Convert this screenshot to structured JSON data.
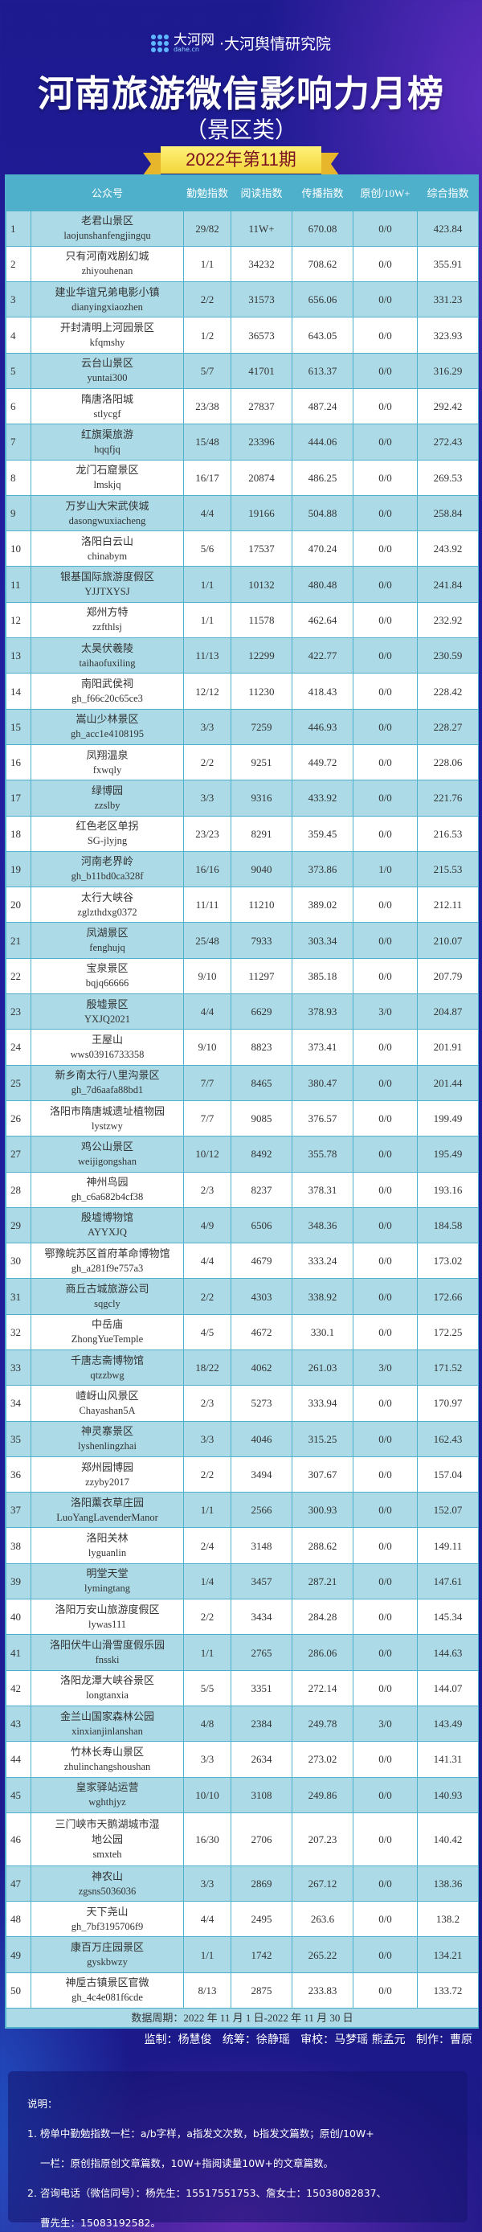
{
  "header": {
    "logo_brand": "大河网",
    "logo_domain": "dahe.cn",
    "logo_org": "·大河舆情研究院",
    "title": "河南旅游微信影响力月榜",
    "subtitle": "（景区类）",
    "issue": "2022年第11期"
  },
  "colors": {
    "table_header": "#4fb0cc",
    "row_odd": "#acdbe7",
    "row_even": "#ffffff",
    "badge": "#f3d53a",
    "background": "#1f1c98"
  },
  "table": {
    "columns": [
      "",
      "公众号",
      "勤勉指数",
      "阅读指数",
      "传播指数",
      "原创/10W+",
      "综合指数"
    ],
    "rows": [
      {
        "rank": "1",
        "name": "老君山景区",
        "id": "laojunshanfengjingqu",
        "diligence": "29/82",
        "read": "11W+",
        "spread": "670.08",
        "orig": "0/0",
        "total": "423.84"
      },
      {
        "rank": "2",
        "name": "只有河南戏剧幻城",
        "id": "zhiyouhenan",
        "diligence": "1/1",
        "read": "34232",
        "spread": "708.62",
        "orig": "0/0",
        "total": "355.91"
      },
      {
        "rank": "3",
        "name": "建业华谊兄弟电影小镇",
        "id": "dianyingxiaozhen",
        "diligence": "2/2",
        "read": "31573",
        "spread": "656.06",
        "orig": "0/0",
        "total": "331.23"
      },
      {
        "rank": "4",
        "name": "开封清明上河园景区",
        "id": "kfqmshy",
        "diligence": "1/2",
        "read": "36573",
        "spread": "643.05",
        "orig": "0/0",
        "total": "323.93"
      },
      {
        "rank": "5",
        "name": "云台山景区",
        "id": "yuntai300",
        "diligence": "5/7",
        "read": "41701",
        "spread": "613.37",
        "orig": "0/0",
        "total": "316.29"
      },
      {
        "rank": "6",
        "name": "隋唐洛阳城",
        "id": "stlycgf",
        "diligence": "23/38",
        "read": "27837",
        "spread": "487.24",
        "orig": "0/0",
        "total": "292.42"
      },
      {
        "rank": "7",
        "name": "红旗渠旅游",
        "id": "hqqfjq",
        "diligence": "15/48",
        "read": "23396",
        "spread": "444.06",
        "orig": "0/0",
        "total": "272.43"
      },
      {
        "rank": "8",
        "name": "龙门石窟景区",
        "id": "lmskjq",
        "diligence": "16/17",
        "read": "20874",
        "spread": "486.25",
        "orig": "0/0",
        "total": "269.53"
      },
      {
        "rank": "9",
        "name": "万岁山大宋武侠城",
        "id": "dasongwuxiacheng",
        "diligence": "4/4",
        "read": "19166",
        "spread": "504.88",
        "orig": "0/0",
        "total": "258.84"
      },
      {
        "rank": "10",
        "name": "洛阳白云山",
        "id": "chinabym",
        "diligence": "5/6",
        "read": "17537",
        "spread": "470.24",
        "orig": "0/0",
        "total": "243.92"
      },
      {
        "rank": "11",
        "name": "银基国际旅游度假区",
        "id": "YJJTXYSJ",
        "diligence": "1/1",
        "read": "10132",
        "spread": "480.48",
        "orig": "0/0",
        "total": "241.84"
      },
      {
        "rank": "12",
        "name": "郑州方特",
        "id": "zzfthlsj",
        "diligence": "1/1",
        "read": "11578",
        "spread": "462.64",
        "orig": "0/0",
        "total": "232.92"
      },
      {
        "rank": "13",
        "name": "太昊伏羲陵",
        "id": "taihaofuxiling",
        "diligence": "11/13",
        "read": "12299",
        "spread": "422.77",
        "orig": "0/0",
        "total": "230.59"
      },
      {
        "rank": "14",
        "name": "南阳武侯祠",
        "id": "gh_f66c20c65ce3",
        "diligence": "12/12",
        "read": "11230",
        "spread": "418.43",
        "orig": "0/0",
        "total": "228.42"
      },
      {
        "rank": "15",
        "name": "嵩山少林景区",
        "id": "gh_acc1e4108195",
        "diligence": "3/3",
        "read": "7259",
        "spread": "446.93",
        "orig": "0/0",
        "total": "228.27"
      },
      {
        "rank": "16",
        "name": "凤翔温泉",
        "id": "fxwqly",
        "diligence": "2/2",
        "read": "9251",
        "spread": "449.72",
        "orig": "0/0",
        "total": "228.06"
      },
      {
        "rank": "17",
        "name": "绿博园",
        "id": "zzslby",
        "diligence": "3/3",
        "read": "9316",
        "spread": "433.92",
        "orig": "0/0",
        "total": "221.76"
      },
      {
        "rank": "18",
        "name": "红色老区单拐",
        "id": "SG-jlyjng",
        "diligence": "23/23",
        "read": "8291",
        "spread": "359.45",
        "orig": "0/0",
        "total": "216.53"
      },
      {
        "rank": "19",
        "name": "河南老界岭",
        "id": "gh_b11bd0ca328f",
        "diligence": "16/16",
        "read": "9040",
        "spread": "373.86",
        "orig": "1/0",
        "total": "215.53"
      },
      {
        "rank": "20",
        "name": "太行大峡谷",
        "id": "zglzthdxg0372",
        "diligence": "11/11",
        "read": "11210",
        "spread": "389.02",
        "orig": "0/0",
        "total": "212.11"
      },
      {
        "rank": "21",
        "name": "凤湖景区",
        "id": "fenghujq",
        "diligence": "25/48",
        "read": "7933",
        "spread": "303.34",
        "orig": "0/0",
        "total": "210.07"
      },
      {
        "rank": "22",
        "name": "宝泉景区",
        "id": "bqjq66666",
        "diligence": "9/10",
        "read": "11297",
        "spread": "385.18",
        "orig": "0/0",
        "total": "207.79"
      },
      {
        "rank": "23",
        "name": "殷墟景区",
        "id": "YXJQ2021",
        "diligence": "4/4",
        "read": "6629",
        "spread": "378.93",
        "orig": "3/0",
        "total": "204.87"
      },
      {
        "rank": "24",
        "name": "王屋山",
        "id": "wws03916733358",
        "diligence": "9/10",
        "read": "8823",
        "spread": "373.41",
        "orig": "0/0",
        "total": "201.91"
      },
      {
        "rank": "25",
        "name": "新乡南太行八里沟景区",
        "id": "gh_7d6aafa88bd1",
        "diligence": "7/7",
        "read": "8465",
        "spread": "380.47",
        "orig": "0/0",
        "total": "201.44"
      },
      {
        "rank": "26",
        "name": "洛阳市隋唐城遗址植物园",
        "id": "lystzwy",
        "diligence": "7/7",
        "read": "9085",
        "spread": "376.57",
        "orig": "0/0",
        "total": "199.49"
      },
      {
        "rank": "27",
        "name": "鸡公山景区",
        "id": "weijigongshan",
        "diligence": "10/12",
        "read": "8492",
        "spread": "355.78",
        "orig": "0/0",
        "total": "195.49"
      },
      {
        "rank": "28",
        "name": "神州鸟园",
        "id": "gh_c6a682b4cf38",
        "diligence": "2/3",
        "read": "8237",
        "spread": "378.31",
        "orig": "0/0",
        "total": "193.16"
      },
      {
        "rank": "29",
        "name": "殷墟博物馆",
        "id": "AYYXJQ",
        "diligence": "4/9",
        "read": "6506",
        "spread": "348.36",
        "orig": "0/0",
        "total": "184.58"
      },
      {
        "rank": "30",
        "name": "鄂豫皖苏区首府革命博物馆",
        "id": "gh_a281f9e757a3",
        "diligence": "4/4",
        "read": "4679",
        "spread": "333.24",
        "orig": "0/0",
        "total": "173.02"
      },
      {
        "rank": "31",
        "name": "商丘古城旅游公司",
        "id": "sqgcly",
        "diligence": "2/2",
        "read": "4303",
        "spread": "338.92",
        "orig": "0/0",
        "total": "172.66"
      },
      {
        "rank": "32",
        "name": "中岳庙",
        "id": "ZhongYueTemple",
        "diligence": "4/5",
        "read": "4672",
        "spread": "330.1",
        "orig": "0/0",
        "total": "172.25"
      },
      {
        "rank": "33",
        "name": "千唐志斋博物馆",
        "id": "qtzzbwg",
        "diligence": "18/22",
        "read": "4062",
        "spread": "261.03",
        "orig": "3/0",
        "total": "171.52"
      },
      {
        "rank": "34",
        "name": "嵖岈山风景区",
        "id": "Chayashan5A",
        "diligence": "2/3",
        "read": "5273",
        "spread": "333.94",
        "orig": "0/0",
        "total": "170.97"
      },
      {
        "rank": "35",
        "name": "神灵寨景区",
        "id": "lyshenlingzhai",
        "diligence": "3/3",
        "read": "4046",
        "spread": "315.25",
        "orig": "0/0",
        "total": "162.43"
      },
      {
        "rank": "36",
        "name": "郑州园博园",
        "id": "zzyby2017",
        "diligence": "2/2",
        "read": "3494",
        "spread": "307.67",
        "orig": "0/0",
        "total": "157.04"
      },
      {
        "rank": "37",
        "name": "洛阳薰衣草庄园",
        "id": "LuoYangLavenderManor",
        "diligence": "1/1",
        "read": "2566",
        "spread": "300.93",
        "orig": "0/0",
        "total": "152.07"
      },
      {
        "rank": "38",
        "name": "洛阳关林",
        "id": "lyguanlin",
        "diligence": "2/4",
        "read": "3148",
        "spread": "288.62",
        "orig": "0/0",
        "total": "149.11"
      },
      {
        "rank": "39",
        "name": "明堂天堂",
        "id": "lymingtang",
        "diligence": "1/4",
        "read": "3457",
        "spread": "287.21",
        "orig": "0/0",
        "total": "147.61"
      },
      {
        "rank": "40",
        "name": "洛阳万安山旅游度假区",
        "id": "lywas111",
        "diligence": "2/2",
        "read": "3434",
        "spread": "284.28",
        "orig": "0/0",
        "total": "145.34"
      },
      {
        "rank": "41",
        "name": "洛阳伏牛山滑雪度假乐园",
        "id": "fnsski",
        "diligence": "1/1",
        "read": "2765",
        "spread": "286.06",
        "orig": "0/0",
        "total": "144.63"
      },
      {
        "rank": "42",
        "name": "洛阳龙潭大峡谷景区",
        "id": "longtanxia",
        "diligence": "5/5",
        "read": "3351",
        "spread": "272.14",
        "orig": "0/0",
        "total": "144.07"
      },
      {
        "rank": "43",
        "name": "金兰山国家森林公园",
        "id": "xinxianjinlanshan",
        "diligence": "4/8",
        "read": "2384",
        "spread": "249.78",
        "orig": "3/0",
        "total": "143.49"
      },
      {
        "rank": "44",
        "name": "竹林长寿山景区",
        "id": "zhulinchangshoushan",
        "diligence": "3/3",
        "read": "2634",
        "spread": "273.02",
        "orig": "0/0",
        "total": "141.31"
      },
      {
        "rank": "45",
        "name": "皇家驿站运营",
        "id": "wghthjyz",
        "diligence": "10/10",
        "read": "3108",
        "spread": "249.86",
        "orig": "0/0",
        "total": "140.93"
      },
      {
        "rank": "46",
        "name": "三门峡市天鹅湖城市湿地公园",
        "id": "smxteh",
        "diligence": "16/30",
        "read": "2706",
        "spread": "207.23",
        "orig": "0/0",
        "total": "140.42"
      },
      {
        "rank": "47",
        "name": "神农山",
        "id": "zgsns5036036",
        "diligence": "3/3",
        "read": "2869",
        "spread": "267.12",
        "orig": "0/0",
        "total": "138.36"
      },
      {
        "rank": "48",
        "name": "天下尧山",
        "id": "gh_7bf3195706f9",
        "diligence": "4/4",
        "read": "2495",
        "spread": "263.6",
        "orig": "0/0",
        "total": "138.2"
      },
      {
        "rank": "49",
        "name": "康百万庄园景区",
        "id": "gyskbwzy",
        "diligence": "1/1",
        "read": "1742",
        "spread": "265.22",
        "orig": "0/0",
        "total": "134.21"
      },
      {
        "rank": "50",
        "name": "神垕古镇景区官微",
        "id": "gh_4c4e081f6cde",
        "diligence": "8/13",
        "read": "2875",
        "spread": "233.83",
        "orig": "0/0",
        "total": "133.72"
      }
    ],
    "period": "数据周期：2022 年 11 月 1 日-2022 年 11 月 30 日"
  },
  "credits": "监制：杨慧俊   统筹：徐静瑶   审校：马梦瑶 熊孟元   制作：曹原",
  "notes": {
    "title": "说明：",
    "line1a": "1. 榜单中勤勉指数一栏：a/b字样，a指发文次数，b指发文篇数；原创/10W+",
    "line1b": "一栏：原创指原创文章篇数，10W+指阅读量10W+的文章篇数。",
    "line2a": "2. 咨询电话（微信同号）：杨先生：15517551753、詹女士：15038082837、",
    "line2b": "曹先生：15083192582。"
  }
}
